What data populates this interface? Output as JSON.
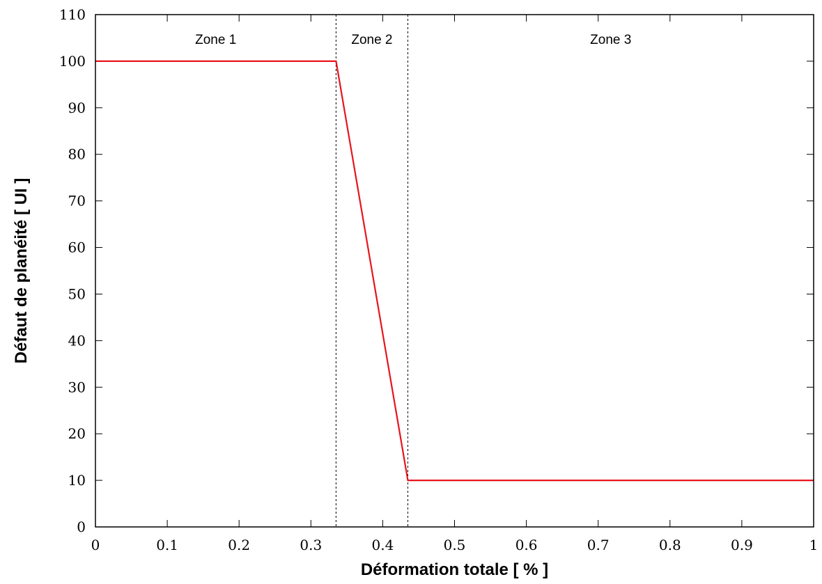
{
  "chart_data": {
    "type": "line",
    "xlabel": "Déformation totale [ % ]",
    "ylabel": "Défaut de planéité [ UI ]",
    "xlim": [
      0,
      1
    ],
    "ylim": [
      0,
      110
    ],
    "x_ticks": [
      0,
      0.1,
      0.2,
      0.3,
      0.4,
      0.5,
      0.6,
      0.7,
      0.8,
      0.9,
      1
    ],
    "x_tick_labels": [
      "0",
      "0.1",
      "0.2",
      "0.3",
      "0.4",
      "0.5",
      "0.6",
      "0.7",
      "0.8",
      "0.9",
      "1"
    ],
    "y_ticks": [
      0,
      10,
      20,
      30,
      40,
      50,
      60,
      70,
      80,
      90,
      100,
      110
    ],
    "y_tick_labels": [
      "0",
      "10",
      "20",
      "30",
      "40",
      "50",
      "60",
      "70",
      "80",
      "90",
      "100",
      "110"
    ],
    "grid": false,
    "series": [
      {
        "color": "#e8141c",
        "x": [
          0,
          0.335,
          0.435,
          1
        ],
        "y": [
          100,
          100,
          10,
          10
        ]
      }
    ],
    "zone_boundaries": [
      0.335,
      0.435
    ],
    "zones": [
      {
        "label": "Zone 1",
        "x": 0.1675
      },
      {
        "label": "Zone 2",
        "x": 0.385
      },
      {
        "label": "Zone 3",
        "x": 0.7175
      }
    ]
  }
}
